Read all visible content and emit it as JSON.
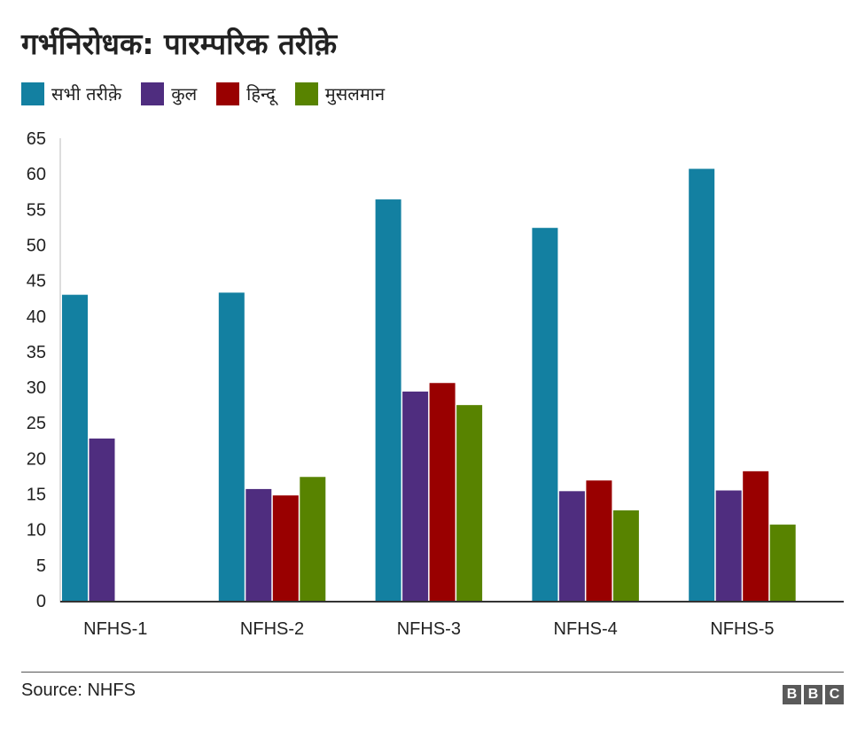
{
  "title": "गर्भनिरोधक: पारम्परिक तरीक़े",
  "source": "Source: NHFS",
  "logo_letters": [
    "B",
    "B",
    "C"
  ],
  "chart_data": {
    "type": "bar",
    "title": "गर्भनिरोधक: पारम्परिक तरीक़े",
    "xlabel": "",
    "ylabel": "",
    "ylim": [
      0,
      65
    ],
    "yticks": [
      0,
      5,
      10,
      15,
      20,
      25,
      30,
      35,
      40,
      45,
      50,
      55,
      60,
      65
    ],
    "grid": false,
    "legend_position": "top-left",
    "categories": [
      "NFHS-1",
      "NFHS-2",
      "NFHS-3",
      "NFHS-4",
      "NFHS-5"
    ],
    "series": [
      {
        "name": "सभी तरीक़े",
        "color": "#1380a1",
        "values": [
          43.0,
          43.3,
          56.4,
          52.4,
          60.7
        ]
      },
      {
        "name": "कुल",
        "color": "#4f2d7f",
        "values": [
          22.8,
          15.7,
          29.4,
          15.4,
          15.5
        ]
      },
      {
        "name": "हिन्दू",
        "color": "#990000",
        "values": [
          null,
          14.8,
          30.6,
          16.9,
          18.2
        ]
      },
      {
        "name": "मुसलमान",
        "color": "#588300",
        "values": [
          null,
          17.4,
          27.5,
          12.7,
          10.7
        ]
      }
    ]
  }
}
